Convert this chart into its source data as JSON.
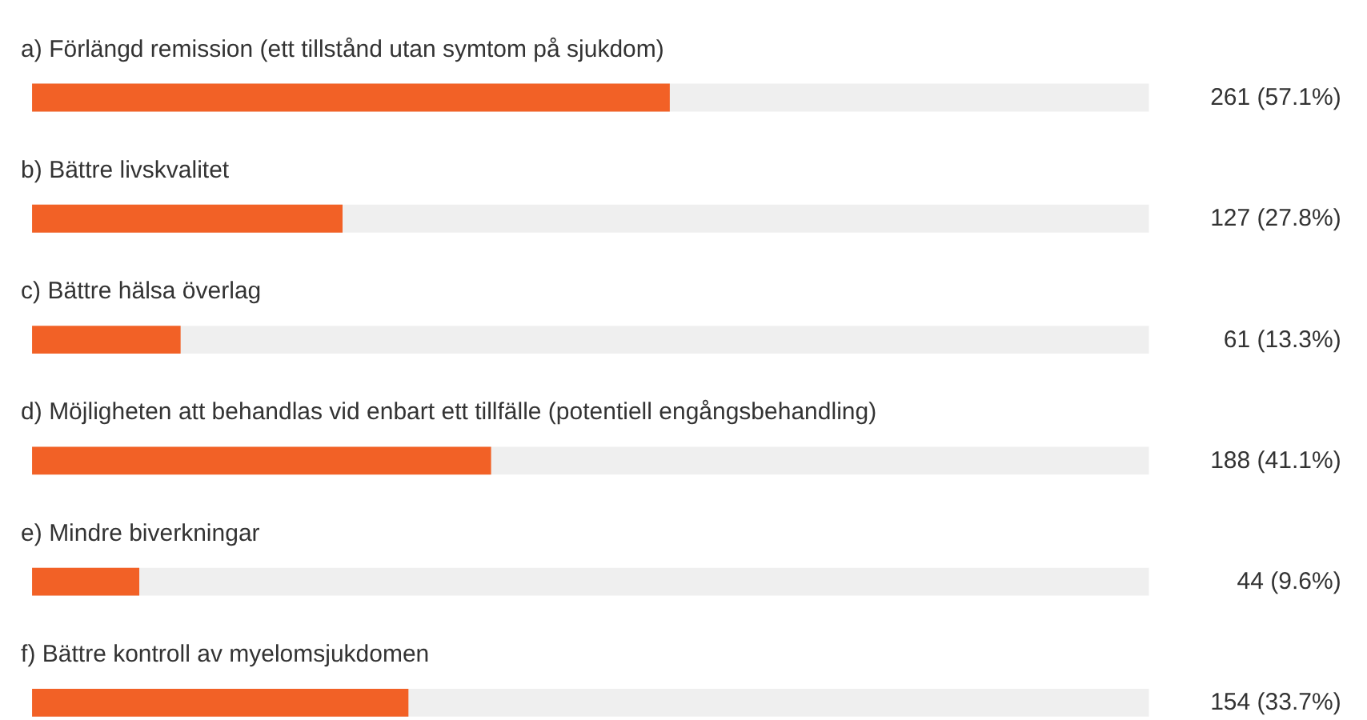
{
  "chart_data": {
    "type": "bar",
    "orientation": "horizontal",
    "categories": [
      "a) Förlängd remission (ett tillstånd utan symtom på sjukdom)",
      "b) Bättre livskvalitet",
      "c) Bättre hälsa överlag",
      "d) Möjligheten att behandlas vid enbart ett tillfälle (potentiell engångsbehandling)",
      "e) Mindre biverkningar",
      "f) Bättre kontroll av myelomsjukdomen"
    ],
    "values": [
      57.1,
      27.8,
      13.3,
      41.1,
      9.6,
      33.7
    ],
    "value_labels": [
      "261    (57.1%)",
      "127    (27.8%)",
      "61    (13.3%)",
      "188    (41.1%)",
      "44    (9.6%)",
      "154    (33.7%)"
    ],
    "color": "#f26126",
    "xlim": [
      0,
      100
    ],
    "tick_labels": false
  }
}
